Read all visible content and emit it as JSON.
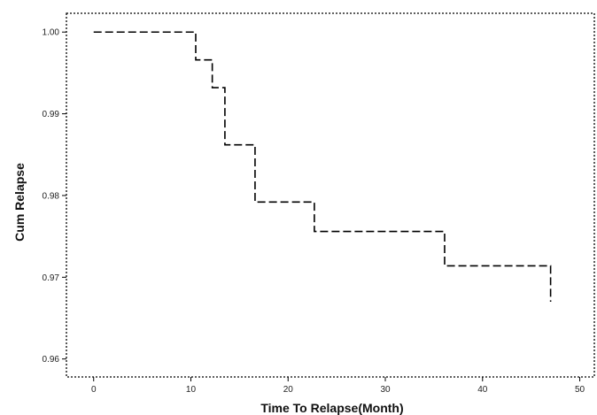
{
  "chart_data": {
    "type": "line",
    "title": "",
    "xlabel": "Time To Relapse(Month)",
    "ylabel": "Cum Relapse",
    "xlim": [
      -2.8,
      51.5
    ],
    "ylim": [
      0.9578,
      1.0023
    ],
    "x_ticks": [
      0,
      10,
      20,
      30,
      40,
      50
    ],
    "y_ticks": [
      0.96,
      0.97,
      0.98,
      0.99,
      1.0
    ],
    "x_tick_labels": [
      "0",
      "10",
      "20",
      "30",
      "40",
      "50"
    ],
    "y_tick_labels": [
      "0.96",
      "0.97",
      "0.98",
      "0.99",
      "1.00"
    ],
    "grid": false,
    "line_style": "dashed step",
    "line_color": "#000000",
    "series": [
      {
        "x": [
          0,
          10.5,
          12.2,
          13.5,
          16.6,
          22.7,
          36.1,
          47.0
        ],
        "y": [
          1.0,
          0.9966,
          0.9932,
          0.9862,
          0.9792,
          0.9756,
          0.9714,
          0.967
        ]
      }
    ]
  }
}
